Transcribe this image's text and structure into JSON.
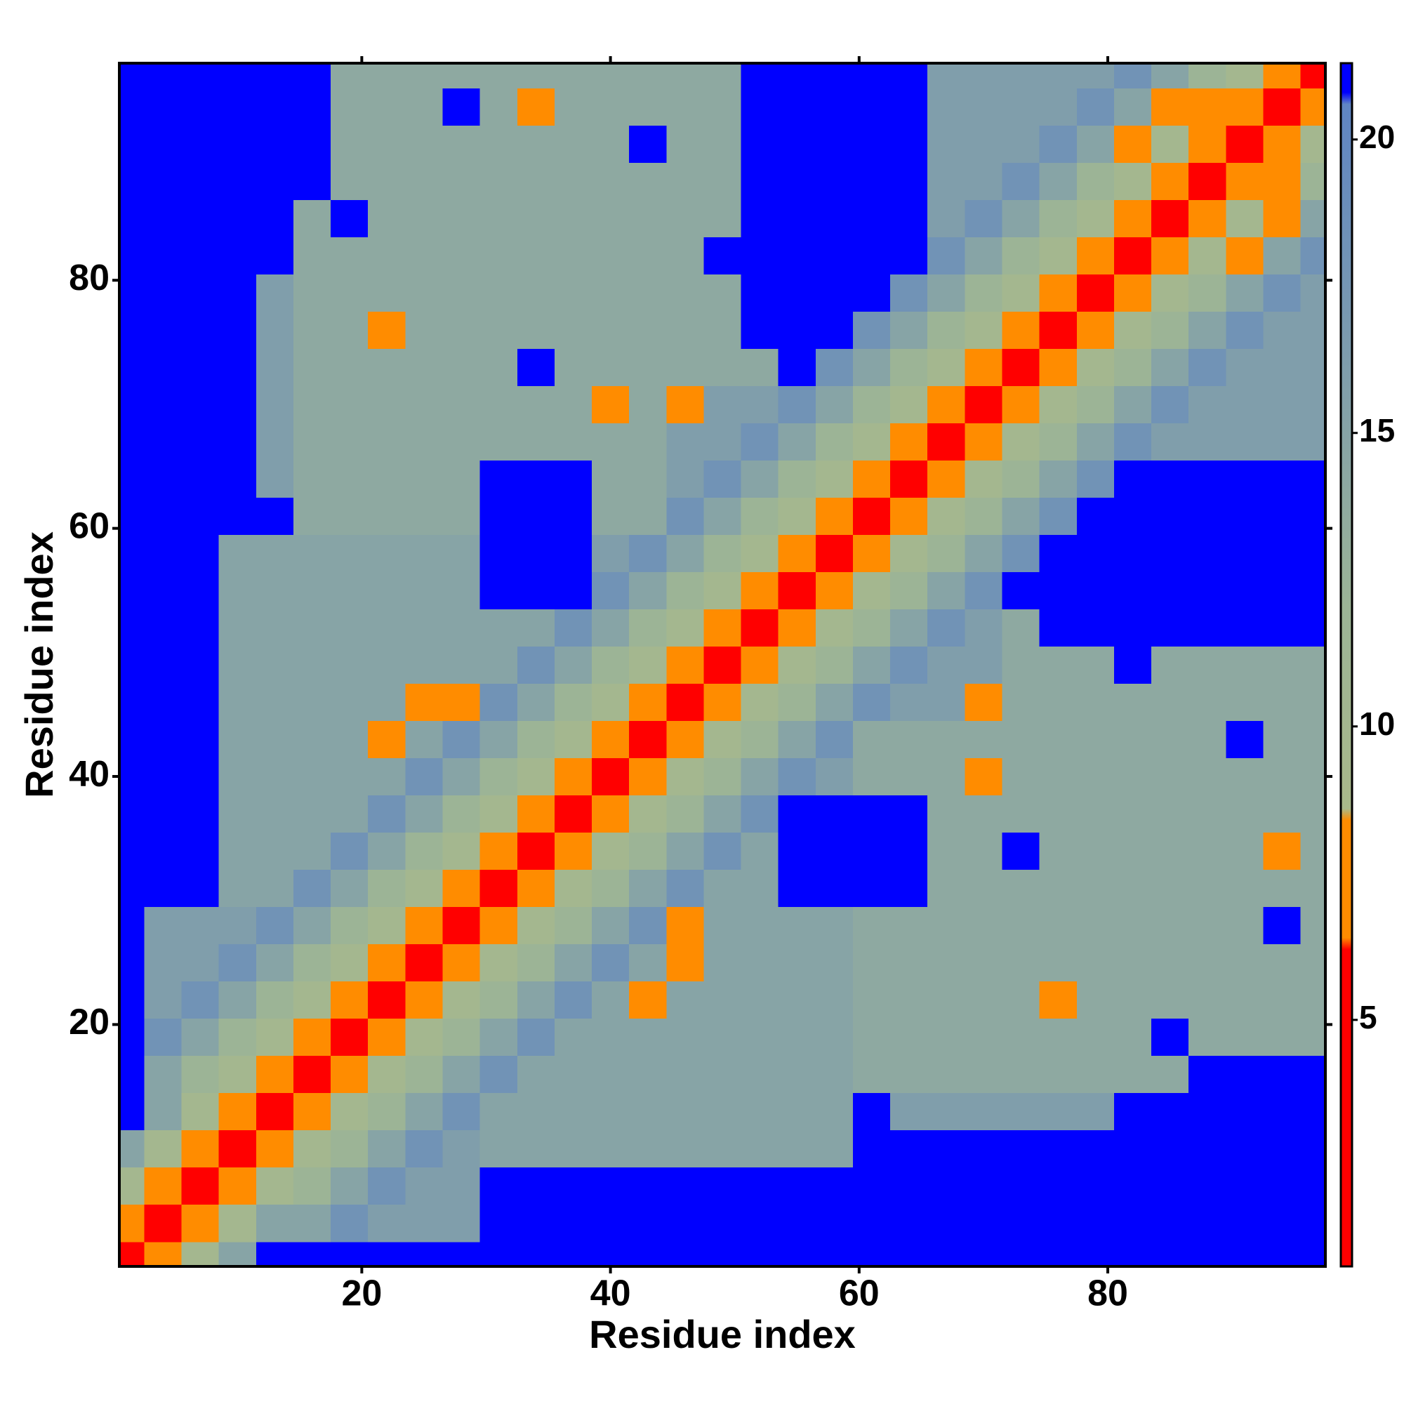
{
  "chart_data": {
    "type": "heatmap",
    "xlabel": "Residue index",
    "ylabel": "Residue index",
    "xlim": [
      0.5,
      97.5
    ],
    "ylim": [
      0.5,
      97.5
    ],
    "xticks": [
      20,
      40,
      60,
      80
    ],
    "yticks": [
      20,
      40,
      60,
      80
    ],
    "x": [
      1,
      4,
      7,
      10,
      13,
      16,
      19,
      22,
      25,
      28,
      31,
      34,
      37,
      40,
      43,
      46,
      49,
      52,
      55,
      58,
      61,
      64,
      67,
      70,
      73,
      76,
      79,
      82,
      85,
      88,
      91,
      94,
      97
    ],
    "y": [
      1,
      4,
      7,
      10,
      13,
      16,
      19,
      22,
      25,
      28,
      31,
      34,
      37,
      40,
      43,
      46,
      49,
      52,
      55,
      58,
      61,
      64,
      67,
      70,
      73,
      76,
      79,
      82,
      85,
      88,
      91,
      94,
      97
    ],
    "colorbar": {
      "lim": [
        0.8,
        21.3
      ],
      "ticks": [
        5,
        10,
        15,
        20
      ],
      "stops": [
        {
          "value": 0.8,
          "color": "#ff0000"
        },
        {
          "value": 6.2,
          "color": "#ff0000"
        },
        {
          "value": 6.4,
          "color": "#ff8c00"
        },
        {
          "value": 8.4,
          "color": "#ff8c00"
        },
        {
          "value": 8.6,
          "color": "#a9b98a"
        },
        {
          "value": 12,
          "color": "#9cb496"
        },
        {
          "value": 20.6,
          "color": "#5f85c4"
        },
        {
          "value": 20.8,
          "color": "#0000ff"
        },
        {
          "value": 21.3,
          "color": "#0000ff"
        }
      ]
    },
    "z": [
      [
        2,
        7,
        10,
        15,
        21,
        21,
        21,
        21,
        21,
        21,
        21,
        21,
        21,
        21,
        21,
        21,
        21,
        21,
        21,
        21,
        21,
        21,
        21,
        21,
        21,
        21,
        21,
        21,
        21,
        21,
        21,
        21,
        21
      ],
      [
        7,
        2,
        7,
        10,
        15,
        15,
        18,
        16,
        16,
        16,
        21,
        21,
        21,
        21,
        21,
        21,
        21,
        21,
        21,
        21,
        21,
        21,
        21,
        21,
        21,
        21,
        21,
        21,
        21,
        21,
        21,
        21,
        21
      ],
      [
        10,
        7,
        2,
        7,
        10,
        12,
        15,
        18,
        16,
        16,
        21,
        21,
        21,
        21,
        21,
        21,
        21,
        21,
        21,
        21,
        21,
        21,
        21,
        21,
        21,
        21,
        21,
        21,
        21,
        21,
        21,
        21,
        21
      ],
      [
        15,
        10,
        7,
        2,
        7,
        10,
        12,
        15,
        18,
        16,
        15,
        15,
        15,
        15,
        15,
        15,
        15,
        15,
        15,
        15,
        21,
        21,
        21,
        21,
        21,
        21,
        21,
        21,
        21,
        21,
        21,
        21,
        21
      ],
      [
        21,
        15,
        10,
        7,
        2,
        7,
        10,
        12,
        15,
        18,
        15,
        15,
        15,
        15,
        15,
        15,
        15,
        15,
        15,
        15,
        21,
        16,
        16,
        16,
        16,
        16,
        16,
        21,
        21,
        21,
        21,
        21,
        21
      ],
      [
        21,
        15,
        12,
        10,
        7,
        2,
        7,
        10,
        12,
        15,
        18,
        15,
        15,
        15,
        15,
        15,
        15,
        15,
        15,
        15,
        14,
        14,
        14,
        14,
        14,
        14,
        14,
        14,
        14,
        21,
        21,
        21,
        21
      ],
      [
        21,
        18,
        15,
        12,
        10,
        7,
        2,
        7,
        10,
        12,
        15,
        18,
        15,
        15,
        15,
        15,
        15,
        15,
        15,
        15,
        14,
        14,
        14,
        14,
        14,
        14,
        14,
        14,
        21,
        14,
        14,
        14,
        14
      ],
      [
        21,
        16,
        18,
        15,
        12,
        10,
        7,
        2,
        7,
        10,
        12,
        15,
        18,
        15,
        8,
        15,
        15,
        15,
        15,
        15,
        14,
        14,
        14,
        14,
        14,
        8,
        14,
        14,
        14,
        14,
        14,
        14,
        14
      ],
      [
        21,
        16,
        16,
        18,
        15,
        12,
        10,
        7,
        2,
        7,
        10,
        12,
        15,
        18,
        15,
        8,
        15,
        15,
        15,
        15,
        14,
        14,
        14,
        14,
        14,
        14,
        14,
        14,
        14,
        14,
        14,
        14,
        14
      ],
      [
        21,
        16,
        16,
        16,
        18,
        15,
        12,
        10,
        7,
        2,
        7,
        10,
        12,
        15,
        18,
        8,
        15,
        15,
        15,
        15,
        14,
        14,
        14,
        14,
        14,
        14,
        14,
        14,
        14,
        14,
        14,
        21,
        14
      ],
      [
        21,
        21,
        21,
        15,
        15,
        18,
        15,
        12,
        10,
        7,
        2,
        7,
        10,
        12,
        15,
        18,
        15,
        15,
        21,
        21,
        21,
        21,
        14,
        14,
        14,
        14,
        14,
        14,
        14,
        14,
        14,
        14,
        14
      ],
      [
        21,
        21,
        21,
        15,
        15,
        15,
        18,
        15,
        12,
        10,
        7,
        2,
        7,
        10,
        12,
        15,
        18,
        15,
        21,
        21,
        21,
        21,
        14,
        14,
        21,
        14,
        14,
        14,
        14,
        14,
        14,
        8,
        14
      ],
      [
        21,
        21,
        21,
        15,
        15,
        15,
        15,
        18,
        15,
        12,
        10,
        7,
        2,
        7,
        10,
        12,
        15,
        18,
        21,
        21,
        21,
        21,
        14,
        14,
        14,
        14,
        14,
        14,
        14,
        14,
        14,
        14,
        14
      ],
      [
        21,
        21,
        21,
        15,
        15,
        15,
        15,
        15,
        18,
        15,
        12,
        10,
        7,
        2,
        7,
        10,
        12,
        15,
        18,
        16,
        14,
        14,
        14,
        8,
        14,
        14,
        14,
        14,
        14,
        14,
        14,
        14,
        14
      ],
      [
        21,
        21,
        21,
        15,
        15,
        15,
        15,
        8,
        15,
        18,
        15,
        12,
        10,
        7,
        2,
        7,
        10,
        12,
        15,
        18,
        14,
        14,
        14,
        14,
        14,
        14,
        14,
        14,
        14,
        14,
        21,
        14,
        14
      ],
      [
        21,
        21,
        21,
        15,
        15,
        15,
        15,
        15,
        8,
        8,
        18,
        15,
        12,
        10,
        7,
        2,
        7,
        10,
        12,
        15,
        18,
        16,
        16,
        8,
        14,
        14,
        14,
        14,
        14,
        14,
        14,
        14,
        14
      ],
      [
        21,
        21,
        21,
        15,
        15,
        15,
        15,
        15,
        15,
        15,
        15,
        18,
        15,
        12,
        10,
        7,
        2,
        7,
        10,
        12,
        15,
        18,
        16,
        16,
        14,
        14,
        14,
        21,
        14,
        14,
        14,
        14,
        14
      ],
      [
        21,
        21,
        21,
        15,
        15,
        15,
        15,
        15,
        15,
        15,
        15,
        15,
        18,
        15,
        12,
        10,
        7,
        2,
        7,
        10,
        12,
        15,
        18,
        16,
        14,
        21,
        21,
        21,
        21,
        21,
        21,
        21,
        21
      ],
      [
        21,
        21,
        21,
        15,
        15,
        15,
        15,
        15,
        15,
        15,
        21,
        21,
        21,
        18,
        15,
        12,
        10,
        7,
        2,
        7,
        10,
        12,
        15,
        18,
        21,
        21,
        21,
        21,
        21,
        21,
        21,
        21,
        21
      ],
      [
        21,
        21,
        21,
        15,
        15,
        15,
        15,
        15,
        15,
        15,
        21,
        21,
        21,
        16,
        18,
        15,
        12,
        10,
        7,
        2,
        7,
        10,
        12,
        15,
        18,
        21,
        21,
        21,
        21,
        21,
        21,
        21,
        21
      ],
      [
        21,
        21,
        21,
        21,
        21,
        14,
        14,
        14,
        14,
        14,
        21,
        21,
        21,
        14,
        14,
        18,
        15,
        12,
        10,
        7,
        2,
        7,
        10,
        12,
        15,
        18,
        21,
        21,
        21,
        21,
        21,
        21,
        21
      ],
      [
        21,
        21,
        21,
        21,
        16,
        14,
        14,
        14,
        14,
        14,
        21,
        21,
        21,
        14,
        14,
        16,
        18,
        15,
        12,
        10,
        7,
        2,
        7,
        10,
        12,
        15,
        18,
        21,
        21,
        21,
        21,
        21,
        21
      ],
      [
        21,
        21,
        21,
        21,
        16,
        14,
        14,
        14,
        14,
        14,
        14,
        14,
        14,
        14,
        14,
        16,
        16,
        18,
        15,
        12,
        10,
        7,
        2,
        7,
        10,
        12,
        15,
        18,
        16,
        16,
        16,
        16,
        16
      ],
      [
        21,
        21,
        21,
        21,
        16,
        14,
        14,
        14,
        14,
        14,
        14,
        14,
        14,
        8,
        14,
        8,
        16,
        16,
        18,
        15,
        12,
        10,
        7,
        2,
        7,
        10,
        12,
        15,
        18,
        16,
        16,
        16,
        16
      ],
      [
        21,
        21,
        21,
        21,
        16,
        14,
        14,
        14,
        14,
        14,
        14,
        21,
        14,
        14,
        14,
        14,
        14,
        14,
        21,
        18,
        15,
        12,
        10,
        7,
        2,
        7,
        10,
        12,
        15,
        18,
        16,
        16,
        16
      ],
      [
        21,
        21,
        21,
        21,
        16,
        14,
        14,
        8,
        14,
        14,
        14,
        14,
        14,
        14,
        14,
        14,
        14,
        21,
        21,
        21,
        18,
        15,
        12,
        10,
        7,
        2,
        7,
        10,
        12,
        15,
        18,
        16,
        16
      ],
      [
        21,
        21,
        21,
        21,
        16,
        14,
        14,
        14,
        14,
        14,
        14,
        14,
        14,
        14,
        14,
        14,
        14,
        21,
        21,
        21,
        21,
        18,
        15,
        12,
        10,
        7,
        2,
        7,
        10,
        12,
        15,
        18,
        16
      ],
      [
        21,
        21,
        21,
        21,
        21,
        14,
        14,
        14,
        14,
        14,
        14,
        14,
        14,
        14,
        14,
        14,
        21,
        21,
        21,
        21,
        21,
        21,
        18,
        15,
        12,
        10,
        7,
        2,
        7,
        10,
        8,
        15,
        18
      ],
      [
        21,
        21,
        21,
        21,
        21,
        14,
        21,
        14,
        14,
        14,
        14,
        14,
        14,
        14,
        14,
        14,
        14,
        21,
        21,
        21,
        21,
        21,
        16,
        18,
        15,
        12,
        10,
        7,
        2,
        7,
        10,
        8,
        15
      ],
      [
        21,
        21,
        21,
        21,
        21,
        21,
        14,
        14,
        14,
        14,
        14,
        14,
        14,
        14,
        14,
        14,
        14,
        21,
        21,
        21,
        21,
        21,
        16,
        16,
        18,
        15,
        12,
        10,
        7,
        2,
        7,
        8,
        12
      ],
      [
        21,
        21,
        21,
        21,
        21,
        21,
        14,
        14,
        14,
        14,
        14,
        14,
        14,
        14,
        21,
        14,
        14,
        21,
        21,
        21,
        21,
        21,
        16,
        16,
        16,
        18,
        15,
        8,
        10,
        7,
        2,
        7,
        10
      ],
      [
        21,
        21,
        21,
        21,
        21,
        21,
        14,
        14,
        14,
        21,
        14,
        8,
        14,
        14,
        14,
        14,
        14,
        21,
        21,
        21,
        21,
        21,
        16,
        16,
        16,
        16,
        18,
        15,
        8,
        8,
        7,
        2,
        7
      ],
      [
        21,
        21,
        21,
        21,
        21,
        21,
        14,
        14,
        14,
        14,
        14,
        14,
        14,
        14,
        14,
        14,
        14,
        21,
        21,
        21,
        21,
        21,
        16,
        16,
        16,
        16,
        16,
        18,
        15,
        12,
        10,
        7,
        2
      ]
    ]
  }
}
